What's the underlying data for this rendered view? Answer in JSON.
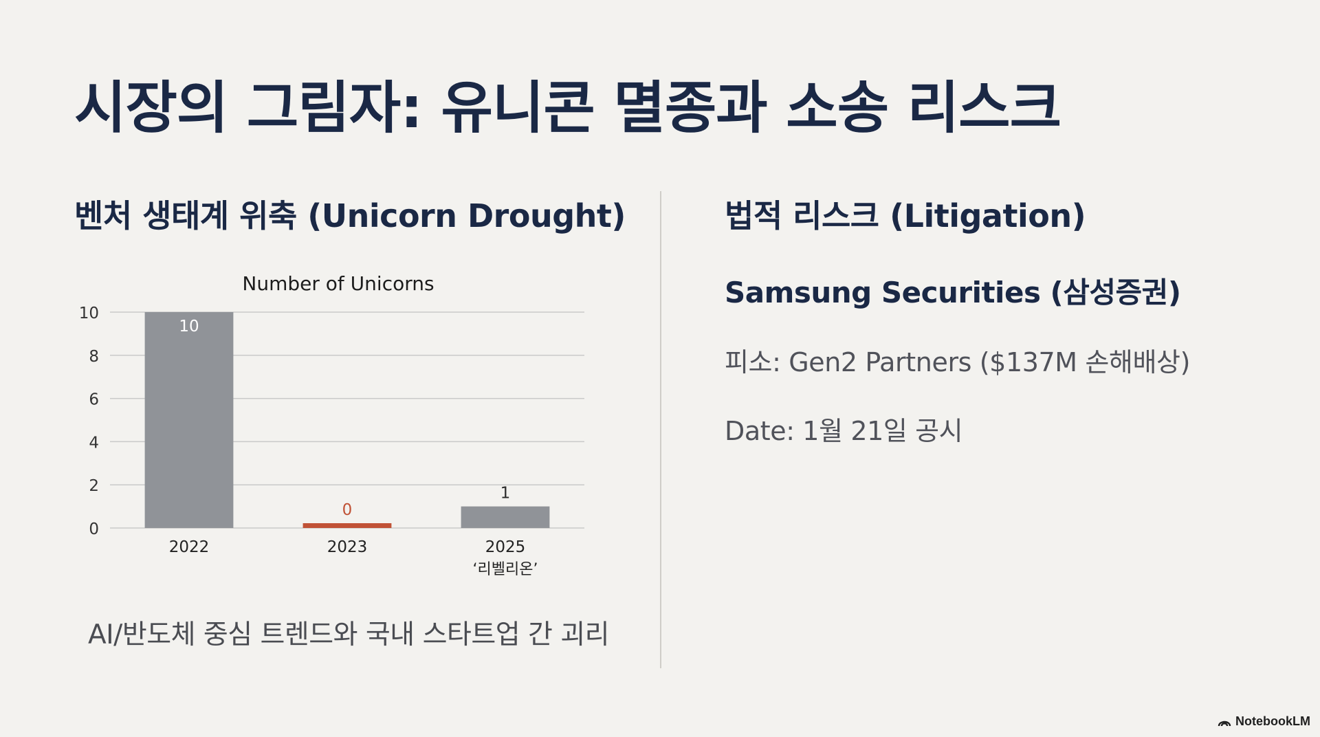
{
  "slide": {
    "title": "시장의 그림자: 유니콘 멸종과 소송 리스크"
  },
  "left": {
    "heading": "벤처 생태계 위축 (Unicorn Drought)",
    "caption": "AI/반도체 중심 트렌드와 국내 스타트업 간 괴리"
  },
  "right": {
    "heading": "법적 리스크 (Litigation)",
    "company": "Samsung Securities (삼성증권)",
    "plaintiff": "피소: Gen2 Partners ($137M 손해배상)",
    "date": "Date: 1월 21일 공시"
  },
  "brand": {
    "name": "NotebookLM",
    "icon": "notebooklm-logo-icon"
  },
  "chart_data": {
    "type": "bar",
    "title": "Number of Unicorns",
    "categories": [
      "2022",
      "2023",
      "2025"
    ],
    "category_sublabels": [
      "",
      "",
      "‘리벨리온’"
    ],
    "values": [
      10,
      0,
      1
    ],
    "data_labels": [
      "10",
      "0",
      "1"
    ],
    "bar_colors": [
      "#909398",
      "#c05236",
      "#909398"
    ],
    "label_colors": [
      "#ffffff",
      "#c05236",
      "#2a2a2a"
    ],
    "yticks": [
      0,
      2,
      4,
      6,
      8,
      10
    ],
    "ylim": [
      0,
      10
    ],
    "grid": true,
    "xlabel": "",
    "ylabel": ""
  }
}
